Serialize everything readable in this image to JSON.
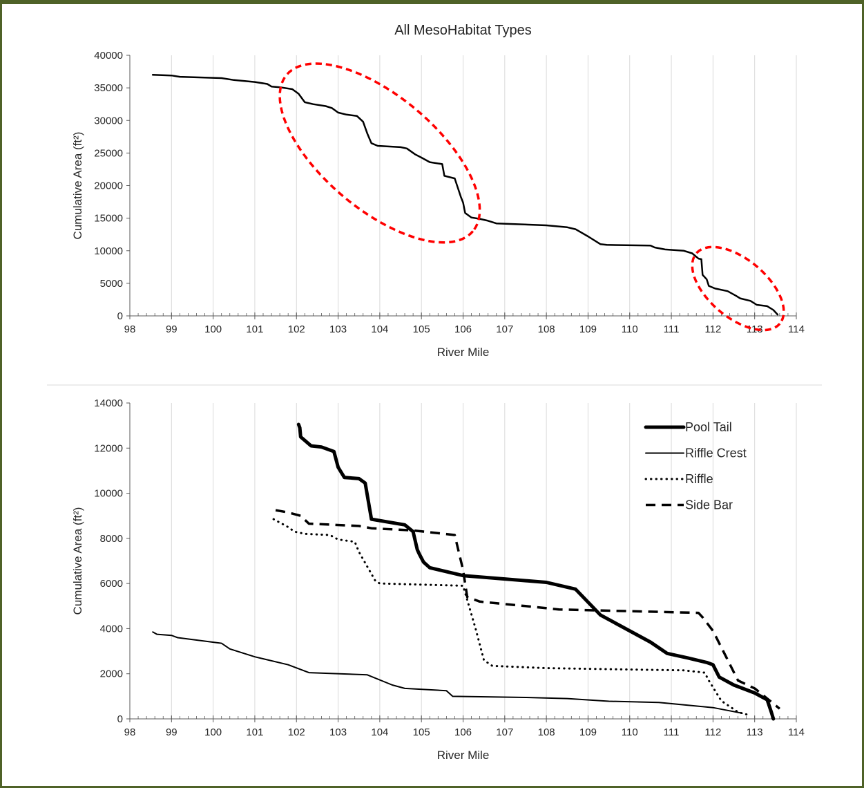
{
  "chart_data": [
    {
      "type": "line",
      "title": "All MesoHabitat Types",
      "xlabel": "River Mile",
      "ylabel": "Cumulative Area (ft²)",
      "xlim": [
        98,
        114
      ],
      "ylim": [
        0,
        40000
      ],
      "xticks": [
        98,
        99,
        100,
        101,
        102,
        103,
        104,
        105,
        106,
        107,
        108,
        109,
        110,
        111,
        112,
        113,
        114
      ],
      "yticks": [
        0,
        5000,
        10000,
        15000,
        20000,
        25000,
        30000,
        35000,
        40000
      ],
      "grid": "vertical",
      "annotations": [
        "red-dashed-ellipse-102-106",
        "red-dashed-ellipse-111.6-113.6"
      ],
      "annotation_color": "#ff0000",
      "series": [
        {
          "color": "#000000",
          "x": [
            98.55,
            99.0,
            99.2,
            100.2,
            100.5,
            101.0,
            101.3,
            101.4,
            101.6,
            101.9,
            102.05,
            102.2,
            102.4,
            102.7,
            102.85,
            103.0,
            103.2,
            103.45,
            103.6,
            103.7,
            103.8,
            103.95,
            104.5,
            104.65,
            104.85,
            105.0,
            105.2,
            105.5,
            105.55,
            105.8,
            105.95,
            106.0,
            106.05,
            106.2,
            106.4,
            106.6,
            106.8,
            108.0,
            108.5,
            108.7,
            109.0,
            109.3,
            109.45,
            110.5,
            110.6,
            110.85,
            111.3,
            111.5,
            111.65,
            111.72,
            111.75,
            111.85,
            111.9,
            112.05,
            112.35,
            112.55,
            112.65,
            112.9,
            113.05,
            113.3,
            113.45,
            113.55
          ],
          "y": [
            37000,
            36900,
            36700,
            36500,
            36200,
            35900,
            35600,
            35200,
            35100,
            34800,
            34100,
            32800,
            32500,
            32200,
            31900,
            31200,
            30900,
            30700,
            29800,
            28000,
            26500,
            26100,
            25900,
            25700,
            24800,
            24300,
            23600,
            23300,
            21500,
            21100,
            18200,
            17400,
            15800,
            15100,
            14900,
            14600,
            14200,
            13900,
            13600,
            13300,
            12200,
            11000,
            10900,
            10800,
            10500,
            10200,
            10000,
            9600,
            8800,
            8700,
            6300,
            5600,
            4600,
            4200,
            3800,
            3100,
            2700,
            2300,
            1700,
            1500,
            900,
            200
          ]
        }
      ]
    },
    {
      "type": "line",
      "title": "",
      "xlabel": "River Mile",
      "ylabel": "Cumulative Area (ft²)",
      "xlim": [
        98,
        114
      ],
      "ylim": [
        0,
        14000
      ],
      "xticks": [
        98,
        99,
        100,
        101,
        102,
        103,
        104,
        105,
        106,
        107,
        108,
        109,
        110,
        111,
        112,
        113,
        114
      ],
      "yticks": [
        0,
        2000,
        4000,
        6000,
        8000,
        10000,
        12000,
        14000
      ],
      "grid": "vertical",
      "legend": "top-right",
      "series": [
        {
          "name": "Pool Tail",
          "style": "thick-solid",
          "color": "#000000",
          "x": [
            102.05,
            102.08,
            102.1,
            102.35,
            102.6,
            102.9,
            103.0,
            103.15,
            103.5,
            103.65,
            103.8,
            104.6,
            104.8,
            104.9,
            104.95,
            105.05,
            105.2,
            106.0,
            107.0,
            108.0,
            108.7,
            109.3,
            109.6,
            110.5,
            110.9,
            111.4,
            111.85,
            112.0,
            112.15,
            112.5,
            113.0,
            113.3,
            113.4,
            113.45
          ],
          "y": [
            13050,
            12900,
            12500,
            12100,
            12050,
            11850,
            11150,
            10700,
            10650,
            10450,
            8850,
            8600,
            8300,
            7500,
            7300,
            6950,
            6700,
            6350,
            6200,
            6050,
            5750,
            4600,
            4300,
            3400,
            2900,
            2700,
            2500,
            2400,
            1850,
            1500,
            1150,
            850,
            300,
            0
          ]
        },
        {
          "name": "Riffle Crest",
          "style": "thin-solid",
          "color": "#000000",
          "x": [
            98.55,
            98.65,
            99.0,
            99.15,
            100.2,
            100.4,
            101.0,
            101.8,
            102.3,
            103.7,
            104.3,
            104.6,
            105.6,
            105.75,
            107.5,
            108.5,
            109.5,
            110.7,
            112.0,
            112.7
          ],
          "y": [
            3850,
            3750,
            3700,
            3600,
            3350,
            3100,
            2750,
            2400,
            2050,
            1950,
            1500,
            1350,
            1250,
            1000,
            950,
            900,
            780,
            730,
            500,
            250
          ]
        },
        {
          "name": "Riffle",
          "style": "dotted",
          "color": "#000000",
          "x": [
            101.45,
            101.6,
            101.8,
            101.95,
            102.2,
            102.8,
            103.0,
            103.4,
            103.5,
            103.9,
            104.0,
            106.0,
            106.3,
            106.5,
            106.7,
            108.0,
            111.3,
            111.8,
            111.9,
            112.2,
            112.6,
            112.9
          ],
          "y": [
            8850,
            8700,
            8500,
            8300,
            8200,
            8150,
            7950,
            7850,
            7400,
            6100,
            6000,
            5900,
            4000,
            2600,
            2350,
            2250,
            2150,
            2050,
            1700,
            800,
            300,
            150
          ]
        },
        {
          "name": "Side Bar",
          "style": "dashed",
          "color": "#000000",
          "x": [
            101.5,
            101.8,
            102.1,
            102.3,
            103.5,
            103.8,
            104.8,
            105.8,
            106.0,
            106.1,
            106.4,
            107.5,
            108.3,
            110.5,
            111.65,
            111.75,
            112.0,
            112.3,
            112.6,
            113.0,
            113.3,
            113.6
          ],
          "y": [
            9250,
            9150,
            9000,
            8650,
            8550,
            8450,
            8350,
            8150,
            6600,
            5400,
            5200,
            5000,
            4850,
            4750,
            4700,
            4500,
            3900,
            2800,
            1700,
            1350,
            900,
            450
          ]
        }
      ]
    }
  ]
}
